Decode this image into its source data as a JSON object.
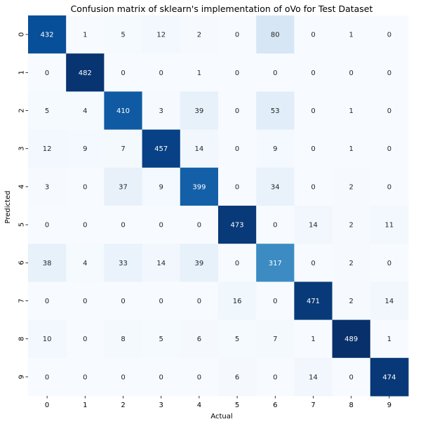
{
  "chart_data": {
    "type": "heatmap",
    "title": "Confusion matrix of sklearn's implementation of oVo for Test Dataset",
    "xlabel": "Actual",
    "ylabel": "Predicted",
    "x_categories": [
      "0",
      "1",
      "2",
      "3",
      "4",
      "5",
      "6",
      "7",
      "8",
      "9"
    ],
    "y_categories": [
      "0",
      "1",
      "2",
      "3",
      "4",
      "5",
      "6",
      "7",
      "8",
      "9"
    ],
    "values": [
      [
        432,
        1,
        5,
        12,
        2,
        0,
        80,
        0,
        1,
        0
      ],
      [
        0,
        482,
        0,
        0,
        1,
        0,
        0,
        0,
        0,
        0
      ],
      [
        5,
        4,
        410,
        3,
        39,
        0,
        53,
        0,
        1,
        0
      ],
      [
        12,
        9,
        7,
        457,
        14,
        0,
        9,
        0,
        1,
        0
      ],
      [
        3,
        0,
        37,
        9,
        399,
        0,
        34,
        0,
        2,
        0
      ],
      [
        0,
        0,
        0,
        0,
        0,
        473,
        0,
        14,
        2,
        11
      ],
      [
        38,
        4,
        33,
        14,
        39,
        0,
        317,
        0,
        2,
        0
      ],
      [
        0,
        0,
        0,
        0,
        0,
        16,
        0,
        471,
        2,
        14
      ],
      [
        10,
        0,
        8,
        5,
        6,
        5,
        7,
        1,
        489,
        1
      ],
      [
        0,
        0,
        0,
        0,
        0,
        6,
        0,
        14,
        0,
        474
      ]
    ],
    "value_range": [
      0,
      489
    ],
    "colormap": "Blues",
    "colors": {
      "low": "#f7fbff",
      "high": "#08306b",
      "text_dark": "#262626",
      "text_light": "#ffffff"
    },
    "grid": false,
    "colorbar": false
  }
}
